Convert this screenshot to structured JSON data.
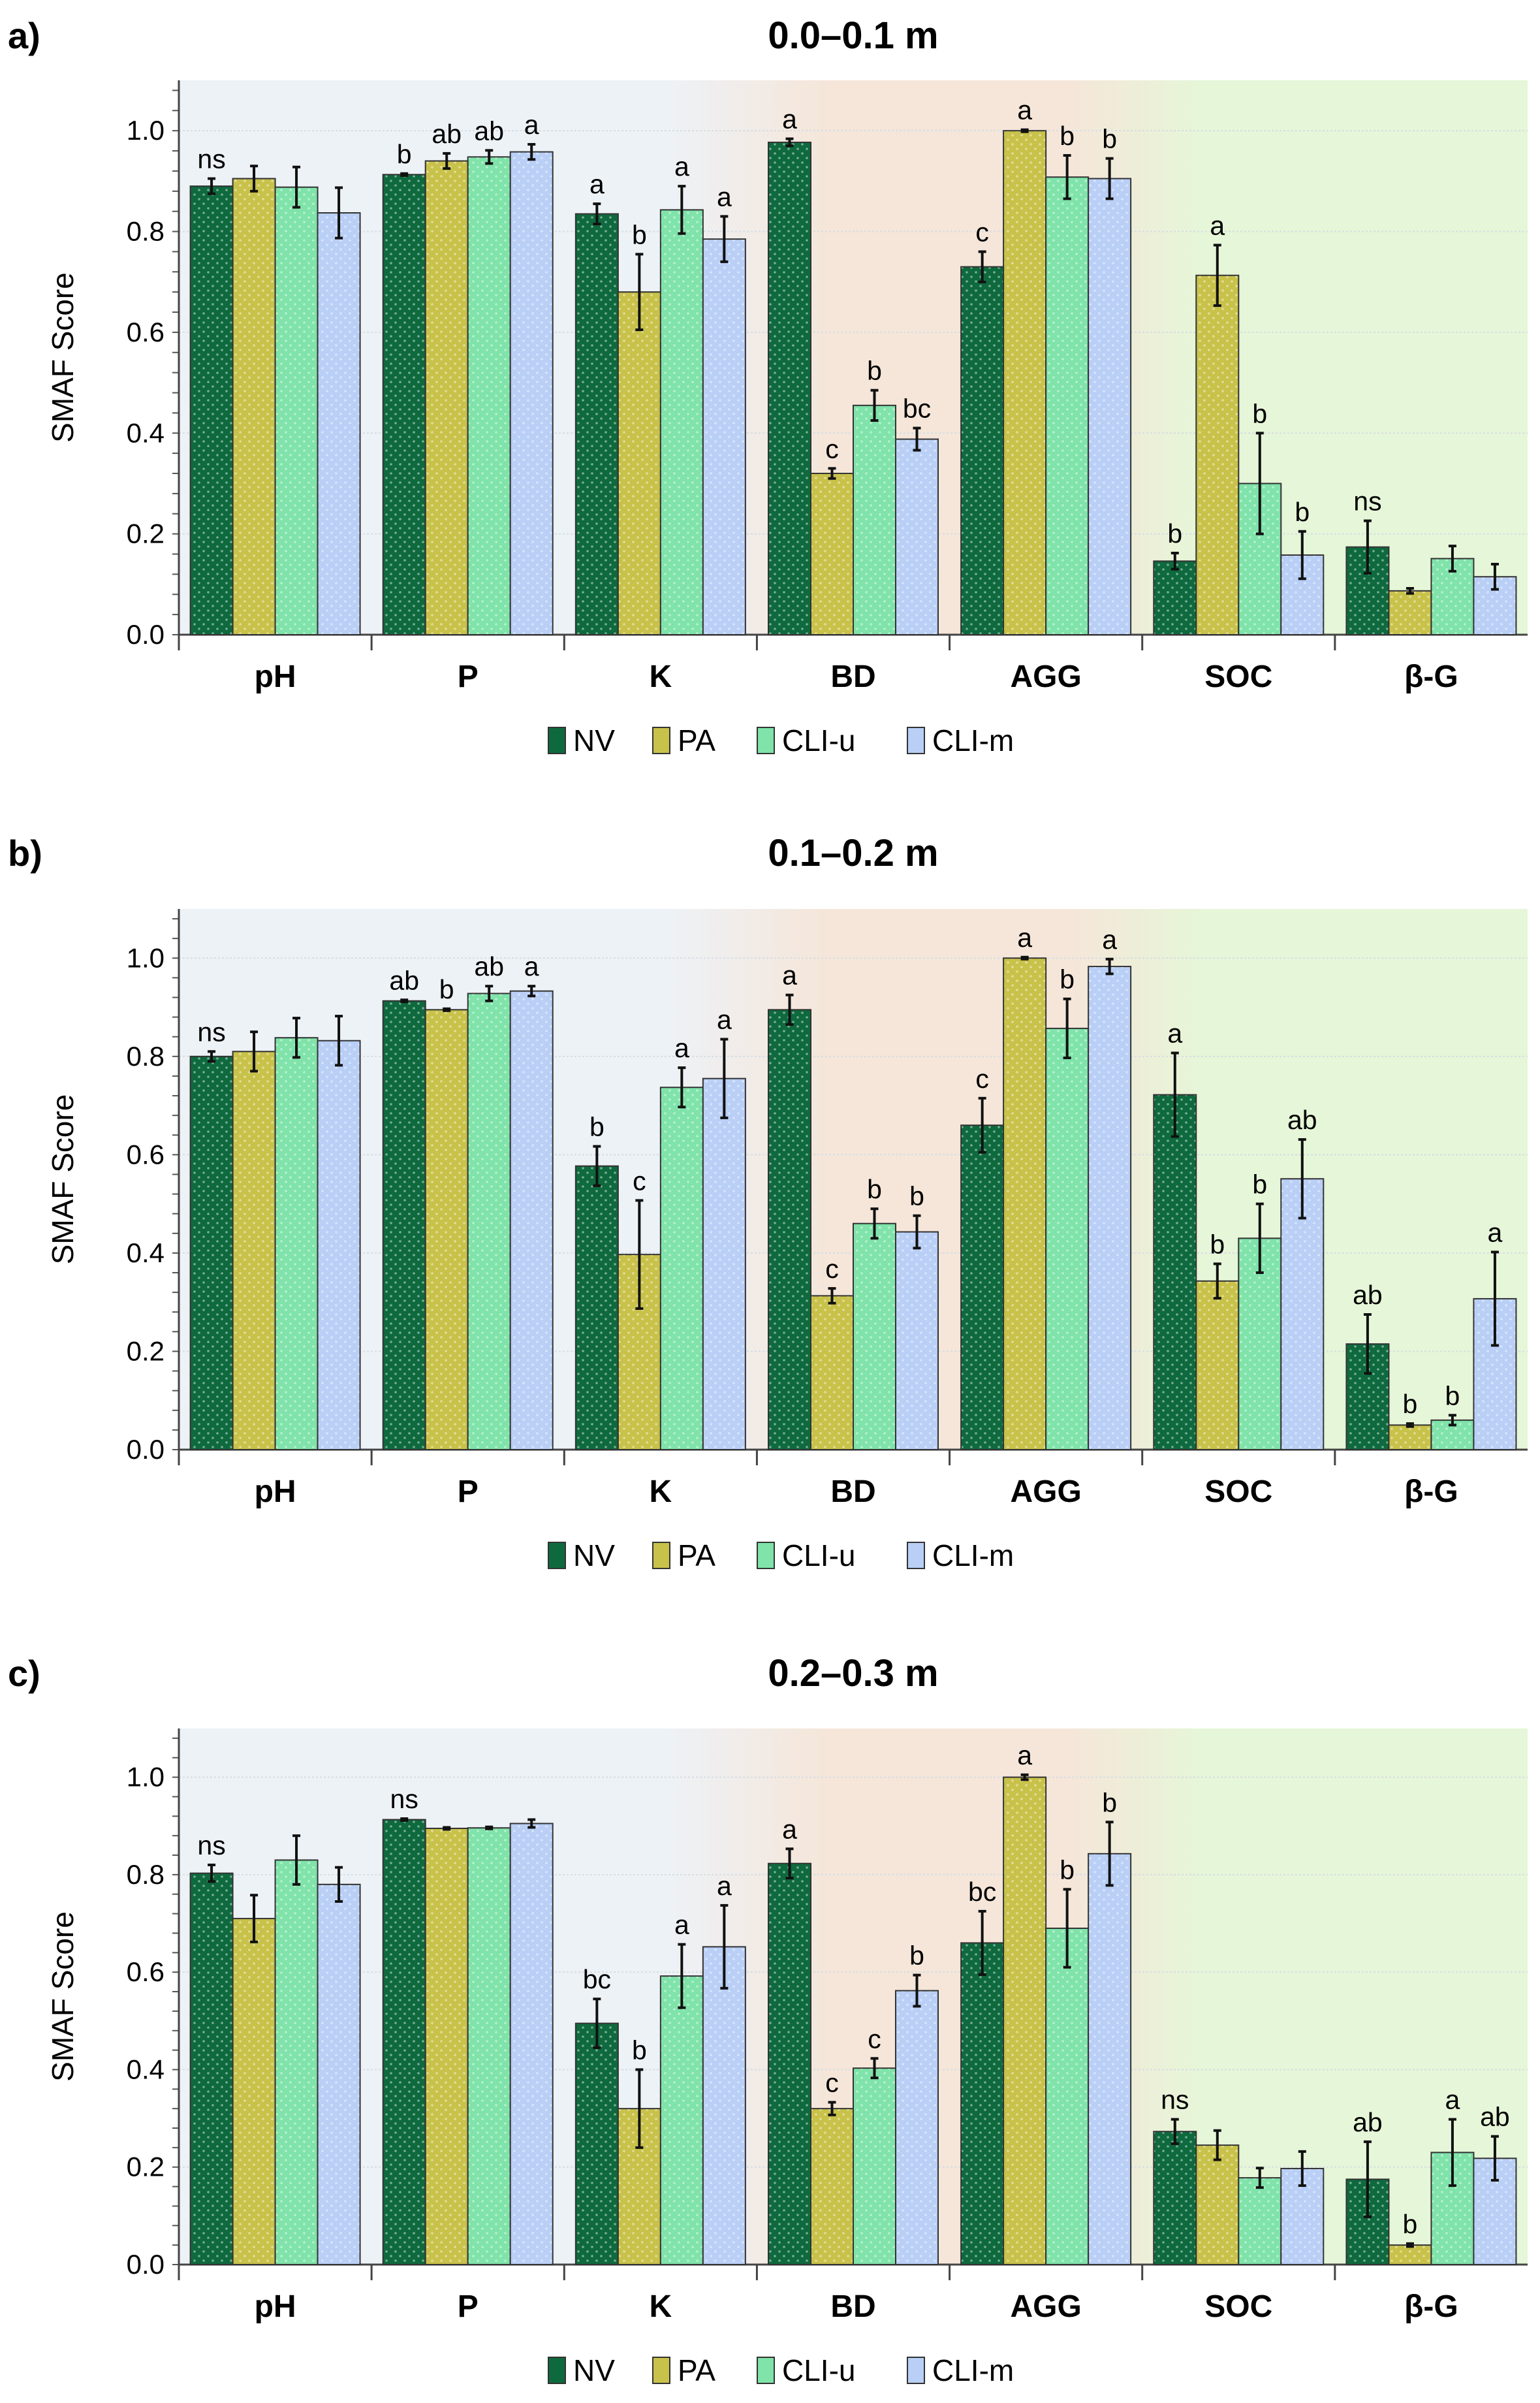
{
  "chart_data": {
    "type": "bar",
    "categories": [
      "pH",
      "P",
      "K",
      "BD",
      "AGG",
      "SOC",
      "β-G"
    ],
    "legend": [
      "NV",
      "PA",
      "CLI-u",
      "CLI-m"
    ],
    "colors": {
      "NV": "#0e6a3e",
      "PA": "#c9c24a",
      "CLI-u": "#7fe3aa",
      "CLI-m": "#b9cff6"
    },
    "background_zones": {
      "pH-K": "#edf2f7",
      "BD-AGG": "#f5e6d9",
      "SOC-β-G": "#e6f6d8"
    },
    "ylabel": "SMAF Score",
    "ylim": [
      0,
      1.1
    ],
    "yticks": [
      "0.0",
      "0.2",
      "0.4",
      "0.6",
      "0.8",
      "1.0"
    ],
    "legend_position": "bottom",
    "grid": true,
    "panels": [
      {
        "label": "a)",
        "title": "0.0–0.1 m",
        "series": [
          {
            "name": "NV",
            "values": [
              0.89,
              0.913,
              0.835,
              0.977,
              0.73,
              0.146,
              0.174
            ],
            "errors": [
              0.015,
              0.002,
              0.02,
              0.007,
              0.03,
              0.016,
              0.052
            ]
          },
          {
            "name": "PA",
            "values": [
              0.905,
              0.94,
              0.68,
              0.32,
              1.0,
              0.713,
              0.087
            ],
            "errors": [
              0.025,
              0.015,
              0.075,
              0.01,
              0.002,
              0.06,
              0.005
            ]
          },
          {
            "name": "CLI-u",
            "values": [
              0.888,
              0.948,
              0.843,
              0.455,
              0.908,
              0.3,
              0.151
            ],
            "errors": [
              0.04,
              0.013,
              0.047,
              0.03,
              0.043,
              0.1,
              0.025
            ]
          },
          {
            "name": "CLI-m",
            "values": [
              0.837,
              0.958,
              0.785,
              0.388,
              0.905,
              0.158,
              0.115
            ],
            "errors": [
              0.05,
              0.015,
              0.045,
              0.022,
              0.04,
              0.047,
              0.025
            ]
          }
        ],
        "letters": [
          [
            "ns",
            "",
            "",
            ""
          ],
          [
            "b",
            "ab",
            "ab",
            "a"
          ],
          [
            "a",
            "b",
            "a",
            "a"
          ],
          [
            "a",
            "c",
            "b",
            "bc"
          ],
          [
            "c",
            "a",
            "b",
            "b"
          ],
          [
            "b",
            "a",
            "b",
            "b"
          ],
          [
            "ns",
            "",
            "",
            ""
          ]
        ]
      },
      {
        "label": "b)",
        "title": "0.1–0.2 m",
        "series": [
          {
            "name": "NV",
            "values": [
              0.8,
              0.913,
              0.577,
              0.895,
              0.66,
              0.722,
              0.215
            ],
            "errors": [
              0.01,
              0.002,
              0.04,
              0.03,
              0.055,
              0.085,
              0.06
            ]
          },
          {
            "name": "PA",
            "values": [
              0.81,
              0.895,
              0.397,
              0.313,
              1.0,
              0.343,
              0.05
            ],
            "errors": [
              0.04,
              0.002,
              0.11,
              0.015,
              0.002,
              0.035,
              0.003
            ]
          },
          {
            "name": "CLI-u",
            "values": [
              0.838,
              0.928,
              0.737,
              0.46,
              0.857,
              0.43,
              0.06
            ],
            "errors": [
              0.04,
              0.015,
              0.04,
              0.03,
              0.06,
              0.07,
              0.01
            ]
          },
          {
            "name": "CLI-m",
            "values": [
              0.832,
              0.933,
              0.755,
              0.443,
              0.983,
              0.551,
              0.307
            ],
            "errors": [
              0.05,
              0.01,
              0.08,
              0.033,
              0.015,
              0.08,
              0.095
            ]
          }
        ],
        "letters": [
          [
            "ns",
            "",
            "",
            ""
          ],
          [
            "ab",
            "b",
            "ab",
            "a"
          ],
          [
            "b",
            "c",
            "a",
            "a"
          ],
          [
            "a",
            "c",
            "b",
            "b"
          ],
          [
            "c",
            "a",
            "b",
            "a"
          ],
          [
            "a",
            "b",
            "b",
            "ab"
          ],
          [
            "ab",
            "b",
            "b",
            "a"
          ]
        ]
      },
      {
        "label": "c)",
        "title": "0.2–0.3 m",
        "series": [
          {
            "name": "NV",
            "values": [
              0.803,
              0.913,
              0.495,
              0.823,
              0.66,
              0.273,
              0.175
            ],
            "errors": [
              0.017,
              0.002,
              0.05,
              0.03,
              0.065,
              0.025,
              0.077
            ]
          },
          {
            "name": "PA",
            "values": [
              0.71,
              0.895,
              0.32,
              0.32,
              1.0,
              0.245,
              0.04
            ],
            "errors": [
              0.048,
              0.002,
              0.08,
              0.013,
              0.005,
              0.03,
              0.003
            ]
          },
          {
            "name": "CLI-u",
            "values": [
              0.83,
              0.896,
              0.592,
              0.403,
              0.69,
              0.178,
              0.23
            ],
            "errors": [
              0.05,
              0.002,
              0.065,
              0.02,
              0.08,
              0.02,
              0.068
            ]
          },
          {
            "name": "CLI-m",
            "values": [
              0.78,
              0.905,
              0.652,
              0.562,
              0.843,
              0.197,
              0.218
            ],
            "errors": [
              0.035,
              0.008,
              0.085,
              0.032,
              0.065,
              0.035,
              0.045
            ]
          }
        ],
        "letters": [
          [
            "ns",
            "",
            "",
            ""
          ],
          [
            "ns",
            "",
            "",
            ""
          ],
          [
            "bc",
            "b",
            "a",
            "a"
          ],
          [
            "a",
            "c",
            "c",
            "b"
          ],
          [
            "bc",
            "a",
            "b",
            "b"
          ],
          [
            "ns",
            "",
            "",
            ""
          ],
          [
            "ab",
            "b",
            "a",
            "ab"
          ]
        ]
      }
    ]
  }
}
